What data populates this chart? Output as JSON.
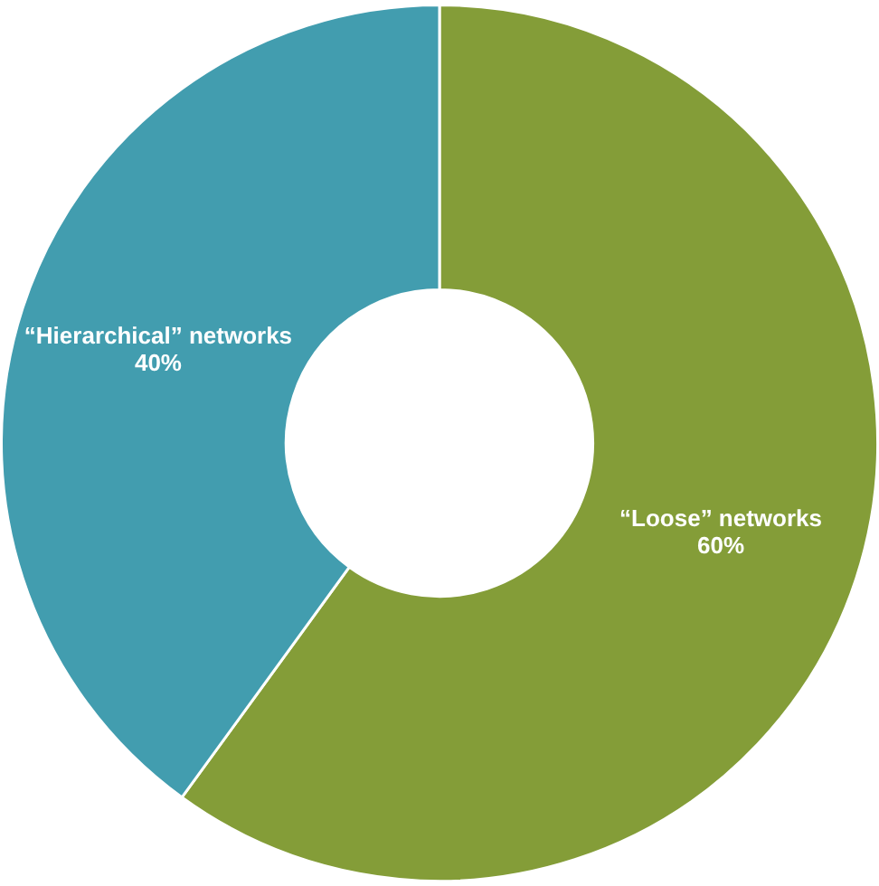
{
  "chart_data": {
    "type": "donut",
    "categories": [
      "“Loose” networks",
      "“Hierarchical” networks"
    ],
    "values": [
      60,
      40
    ],
    "colors": [
      "#849d38",
      "#429daf"
    ],
    "value_labels": [
      "60%",
      "40%"
    ]
  }
}
